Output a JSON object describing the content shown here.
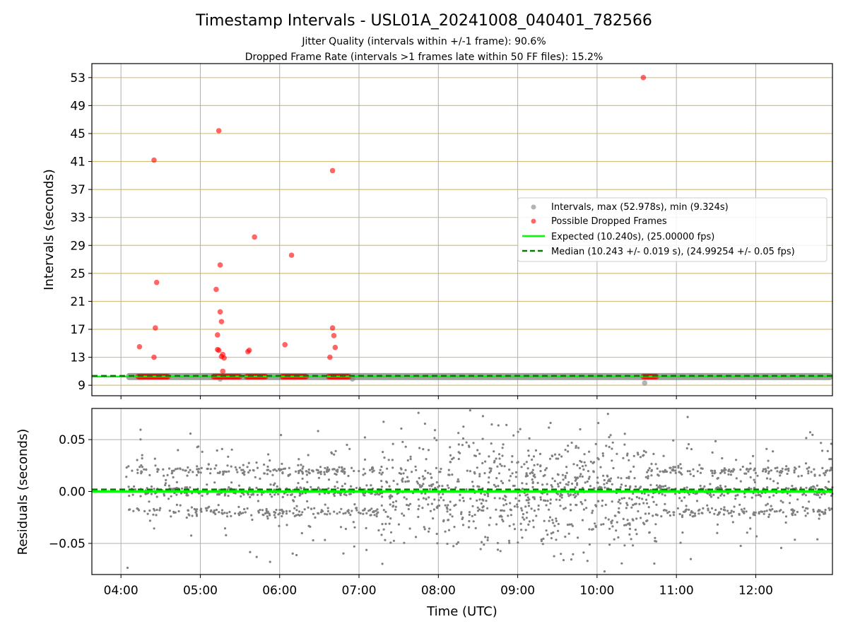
{
  "figure": {
    "title": "Timestamp Intervals - USL01A_20241008_040401_782566",
    "subtitle_1": "Jitter Quality (intervals within +/-1 frame): 90.6%",
    "subtitle_2": "Dropped Frame Rate (intervals >1 frames late within 50 FF files): 15.2%"
  },
  "colors": {
    "intervals": "#808080",
    "dropped": "#ff0000",
    "expected": "#00ff00",
    "median": "#008000",
    "hgrid_top": "#d6c07a",
    "grid": "#b0b0b0"
  },
  "chart_data": [
    {
      "type": "scatter",
      "ylabel": "Intervals (seconds)",
      "xlim": [
        "03:38",
        "12:58"
      ],
      "ylim": [
        7.5,
        55
      ],
      "yticks": [
        "9",
        "13",
        "17",
        "21",
        "25",
        "29",
        "33",
        "37",
        "41",
        "45",
        "49",
        "53"
      ],
      "xticks": [
        "04:00",
        "05:00",
        "06:00",
        "07:00",
        "08:00",
        "09:00",
        "10:00",
        "11:00",
        "12:00"
      ],
      "grid": true,
      "legend_position": "right",
      "legend": [
        {
          "key": "intervals",
          "label": "Intervals, max (52.978s), min (9.324s)"
        },
        {
          "key": "dropped",
          "label": "Possible Dropped Frames"
        },
        {
          "key": "expected",
          "label": "Expected (10.240s), (25.00000 fps)"
        },
        {
          "key": "median",
          "label": "Median (10.243 +/- 0.019 s), (24.99254 +/- 0.05 fps)"
        }
      ],
      "expected_value": 10.24,
      "median_value": 10.243,
      "interval_band": {
        "start": "04:04",
        "end": "12:58",
        "value": 10.24
      },
      "interval_outliers": [
        {
          "t": "10:36",
          "v": 9.324
        },
        {
          "t": "05:15",
          "v": 9.9
        },
        {
          "t": "06:55",
          "v": 9.9
        }
      ],
      "dropped_clusters": [
        {
          "start": "04:13",
          "end": "04:36",
          "v": 10.24
        },
        {
          "start": "05:10",
          "end": "05:30",
          "v": 10.24
        },
        {
          "start": "05:35",
          "end": "05:50",
          "v": 10.24
        },
        {
          "start": "06:02",
          "end": "06:20",
          "v": 10.24
        },
        {
          "start": "06:37",
          "end": "06:53",
          "v": 10.24
        },
        {
          "start": "10:35",
          "end": "10:45",
          "v": 10.24
        }
      ],
      "dropped_points": [
        {
          "t": "04:14",
          "v": 14.5
        },
        {
          "t": "04:25",
          "v": 41.2
        },
        {
          "t": "04:25",
          "v": 13.0
        },
        {
          "t": "04:26",
          "v": 17.2
        },
        {
          "t": "04:27",
          "v": 23.7
        },
        {
          "t": "05:12",
          "v": 22.7
        },
        {
          "t": "05:13",
          "v": 14.1
        },
        {
          "t": "05:13",
          "v": 16.2
        },
        {
          "t": "05:14",
          "v": 45.4
        },
        {
          "t": "05:14",
          "v": 14.0
        },
        {
          "t": "05:15",
          "v": 19.5
        },
        {
          "t": "05:15",
          "v": 26.2
        },
        {
          "t": "05:16",
          "v": 18.1
        },
        {
          "t": "05:16",
          "v": 13.1
        },
        {
          "t": "05:17",
          "v": 13.4
        },
        {
          "t": "05:17",
          "v": 11.0
        },
        {
          "t": "05:18",
          "v": 12.9
        },
        {
          "t": "05:36",
          "v": 13.8
        },
        {
          "t": "05:37",
          "v": 14.0
        },
        {
          "t": "05:41",
          "v": 30.2
        },
        {
          "t": "06:04",
          "v": 14.8
        },
        {
          "t": "06:09",
          "v": 27.6
        },
        {
          "t": "06:38",
          "v": 13.0
        },
        {
          "t": "06:40",
          "v": 39.7
        },
        {
          "t": "06:40",
          "v": 17.2
        },
        {
          "t": "06:41",
          "v": 16.1
        },
        {
          "t": "06:42",
          "v": 14.4
        },
        {
          "t": "10:35",
          "v": 53.0
        }
      ]
    },
    {
      "type": "scatter",
      "ylabel": "Residuals (seconds)",
      "xlabel": "Time (UTC)",
      "xlim": [
        "03:38",
        "12:58"
      ],
      "ylim": [
        -0.08,
        0.08
      ],
      "yticks": [
        "0.05",
        "0.00",
        "−0.05"
      ],
      "xticks": [
        "04:00",
        "05:00",
        "06:00",
        "07:00",
        "08:00",
        "09:00",
        "10:00",
        "11:00",
        "12:00"
      ],
      "grid": true,
      "expected_value": 0.0,
      "median_value": 0.002,
      "residual_points": {
        "t_start": "04:04",
        "t_end": "12:58",
        "count": 2000,
        "levels": [
          -0.02,
          0.0,
          0.02
        ],
        "scatter_range": [
          -0.08,
          0.08
        ]
      }
    }
  ]
}
